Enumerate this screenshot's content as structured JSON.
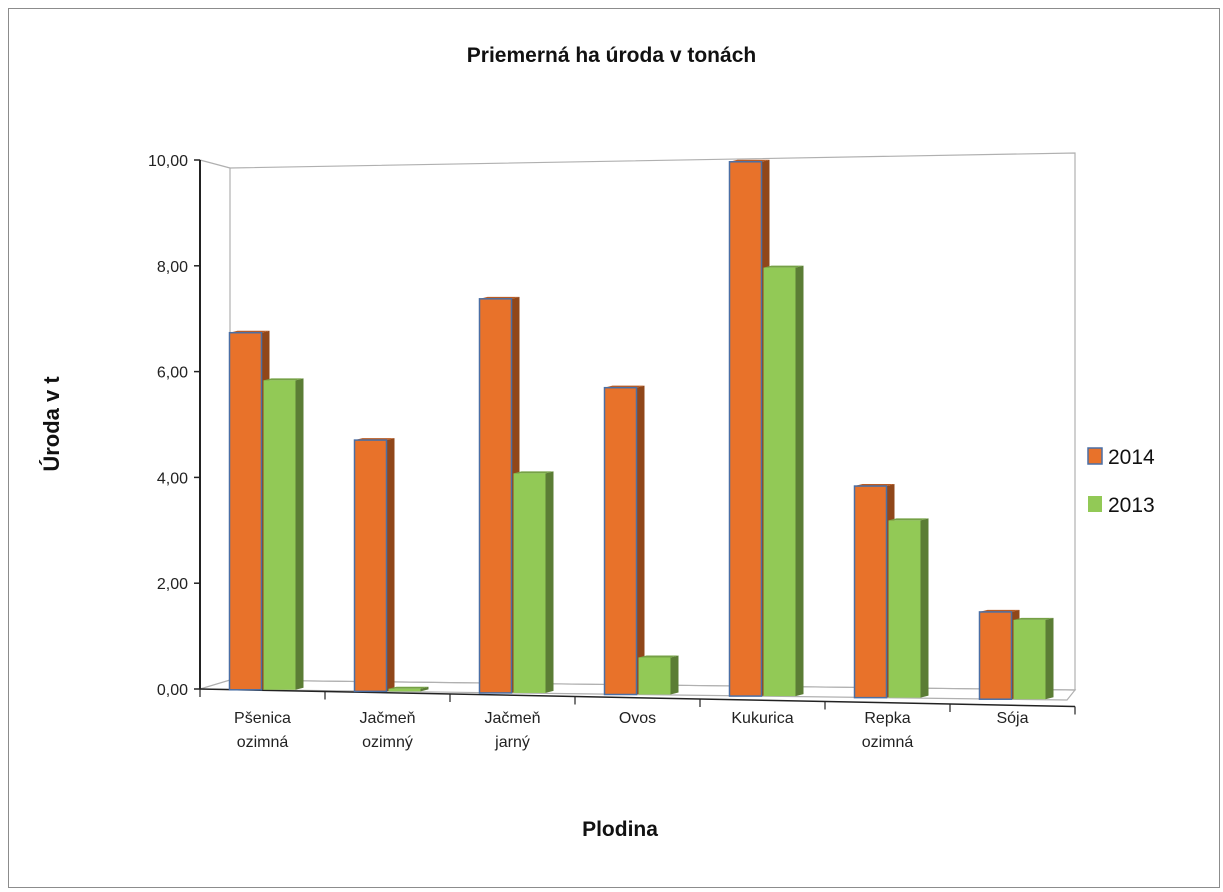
{
  "chart_data": {
    "type": "bar",
    "title": "Priemerná ha úroda v tonách",
    "xlabel": "Plodina",
    "ylabel": "Úroda v t",
    "categories": [
      [
        "Pšenica",
        "ozimná"
      ],
      [
        "Jačmeň",
        "ozimný"
      ],
      [
        "Jačmeň",
        "jarný"
      ],
      [
        "Ovos"
      ],
      [
        "Kukurica"
      ],
      [
        "Repka",
        "ozimná"
      ],
      [
        "Sója"
      ]
    ],
    "series": [
      {
        "name": "2014",
        "color": "#e8722a",
        "values": [
          6.75,
          4.75,
          7.45,
          5.8,
          10.1,
          4.0,
          1.65
        ]
      },
      {
        "name": "2013",
        "color": "#92c956",
        "values": [
          5.85,
          0.05,
          4.15,
          0.7,
          8.1,
          3.35,
          1.5
        ]
      }
    ],
    "ylim": [
      0,
      10
    ],
    "yticks": [
      "0,00",
      "2,00",
      "4,00",
      "6,00",
      "8,00",
      "10,00"
    ],
    "legend_position": "right",
    "grid": false
  }
}
